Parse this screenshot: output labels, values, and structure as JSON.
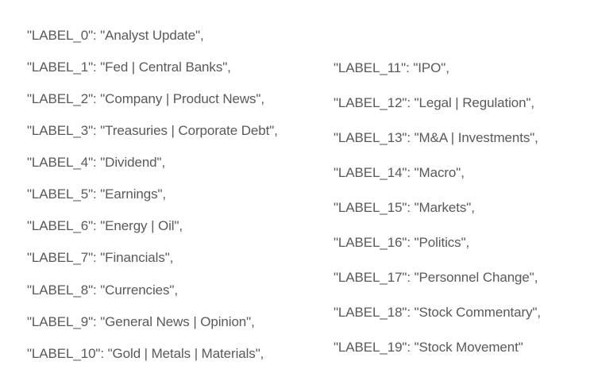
{
  "left_column": [
    "\"LABEL_0\": \"Analyst Update\",",
    "\"LABEL_1\": \"Fed | Central Banks\",",
    "\"LABEL_2\": \"Company | Product News\",",
    "\"LABEL_3\": \"Treasuries | Corporate Debt\",",
    "\"LABEL_4\": \"Dividend\",",
    "\"LABEL_5\": \"Earnings\",",
    "\"LABEL_6\": \"Energy | Oil\",",
    "\"LABEL_7\": \"Financials\",",
    "\"LABEL_8\": \"Currencies\",",
    "\"LABEL_9\": \"General News | Opinion\",",
    "\"LABEL_10\": \"Gold | Metals | Materials\","
  ],
  "right_column": [
    "\"LABEL_11\": \"IPO\",",
    "\"LABEL_12\": \"Legal | Regulation\",",
    "\"LABEL_13\": \"M&A | Investments\",",
    "\"LABEL_14\": \"Macro\",",
    "\"LABEL_15\": \"Markets\",",
    "\"LABEL_16\": \"Politics\",",
    "\"LABEL_17\": \"Personnel Change\",",
    "\"LABEL_18\": \"Stock Commentary\",",
    "\"LABEL_19\": \"Stock Movement\""
  ]
}
